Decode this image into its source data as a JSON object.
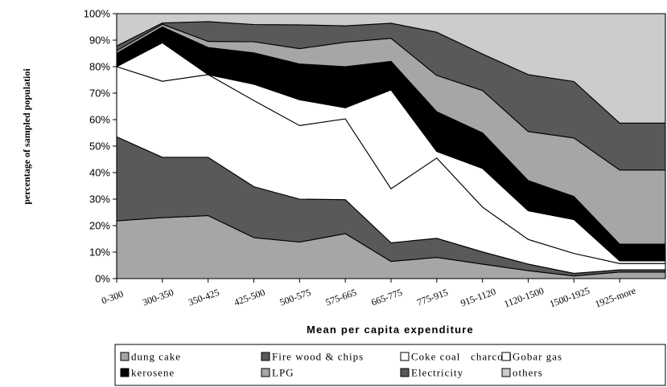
{
  "chart_data": {
    "type": "area",
    "stacked": true,
    "percent": true,
    "title": "",
    "xlabel": "Mean per capita expenditure",
    "ylabel": "percentage of sampled populatioi",
    "ylim": [
      0,
      100
    ],
    "y_ticks": [
      "0%",
      "10%",
      "20%",
      "30%",
      "40%",
      "50%",
      "60%",
      "70%",
      "80%",
      "90%",
      "100%"
    ],
    "grid": false,
    "legend_position": "bottom",
    "categories": [
      "0-300",
      "300-350",
      "350-425",
      "425-500",
      "500-575",
      "575-665",
      "665-775",
      "775-915",
      "915-1120",
      "1120-1500",
      "1500-1925",
      "1925-more"
    ],
    "series": [
      {
        "name": "dung cake",
        "color": "#a6a6a6",
        "values": [
          21.8,
          23,
          23.8,
          15.5,
          13.8,
          17,
          6.5,
          8,
          5.5,
          3,
          1,
          2.5
        ]
      },
      {
        "name": "Fire wood & chips",
        "color": "#595959",
        "values": [
          31.7,
          22.8,
          22,
          19.2,
          16.2,
          12.8,
          7,
          7.2,
          4.6,
          2.5,
          1,
          0.8
        ]
      },
      {
        "name": "Coke coal charcoal",
        "color": "#ffffff",
        "values": [
          26.5,
          28.7,
          31.2,
          32.5,
          27.8,
          30.5,
          20.4,
          30.3,
          16.9,
          9.3,
          7.5,
          2.4
        ]
      },
      {
        "name": "Gobar gas",
        "color": "#ffffff",
        "values": [
          0,
          14.5,
          0,
          6.2,
          9.7,
          4.2,
          37.3,
          2.5,
          14.6,
          10.8,
          12.8,
          1
        ]
      },
      {
        "name": "kerosene",
        "color": "#000000",
        "values": [
          5,
          6,
          10.2,
          11.8,
          13.5,
          15.5,
          10.8,
          15,
          13.4,
          11.4,
          8.7,
          6.3
        ]
      },
      {
        "name": "LPG",
        "color": "#a6a6a6",
        "values": [
          1,
          1,
          2.3,
          4.2,
          5.8,
          9.2,
          8.7,
          13.7,
          16,
          18.5,
          22.1,
          28
        ]
      },
      {
        "name": "Electricity",
        "color": "#595959",
        "values": [
          1.8,
          0.5,
          7.5,
          6.5,
          9,
          6.2,
          5.7,
          16.3,
          13.8,
          21.5,
          21.3,
          17.7
        ]
      },
      {
        "name": "others",
        "color": "#cccccc",
        "values": [
          12.2,
          3.5,
          3,
          4.1,
          4.2,
          4.6,
          3.6,
          7,
          15.2,
          23,
          25.6,
          41.3
        ]
      }
    ]
  },
  "legend": {
    "items": [
      {
        "label": "dung cake",
        "color": "#a6a6a6"
      },
      {
        "label": "Fire wood & chips",
        "color": "#595959"
      },
      {
        "label": "Coke coal   charcoal",
        "color": "#ffffff"
      },
      {
        "label": "Gobar gas",
        "color": "#ffffff"
      },
      {
        "label": "kerosene",
        "color": "#000000"
      },
      {
        "label": "LPG",
        "color": "#a6a6a6"
      },
      {
        "label": "Electricity",
        "color": "#595959"
      },
      {
        "label": "others",
        "color": "#cccccc"
      }
    ]
  }
}
